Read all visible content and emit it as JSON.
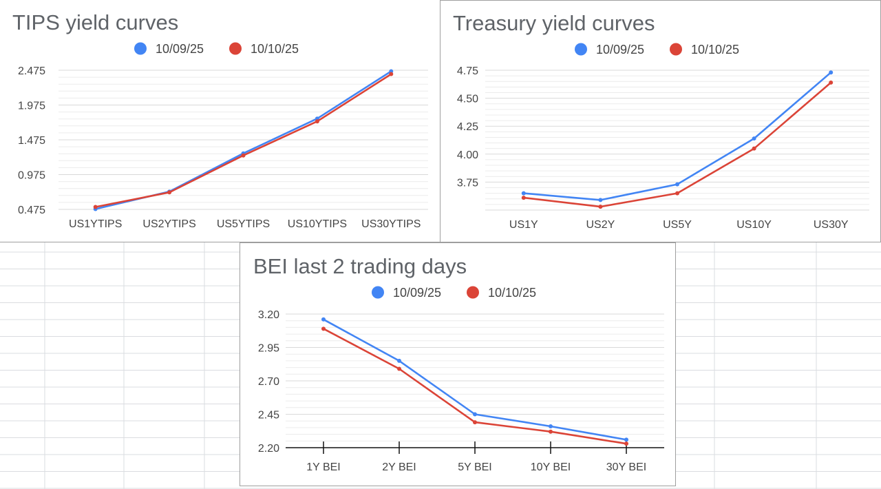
{
  "colors": {
    "series1": "#4285f4",
    "series2": "#db4437",
    "gridline": "#d9d9d9",
    "minor_gridline": "#ececec",
    "axis": "#333333",
    "sheet_line": "#dadce0"
  },
  "chart_data": [
    {
      "type": "line",
      "title": "TIPS yield curves",
      "categories": [
        "US1YTIPS",
        "US2YTIPS",
        "US5YTIPS",
        "US10YTIPS",
        "US30YTIPS"
      ],
      "series": [
        {
          "name": "10/09/25",
          "values": [
            0.48,
            0.73,
            1.28,
            1.78,
            2.46
          ]
        },
        {
          "name": "10/10/25",
          "values": [
            0.51,
            0.72,
            1.25,
            1.74,
            2.42
          ]
        }
      ],
      "ylim": [
        0.475,
        2.475
      ],
      "y_ticks": [
        "0.475",
        "0.975",
        "1.475",
        "1.975",
        "2.475"
      ],
      "grid": true,
      "legend": "top"
    },
    {
      "type": "line",
      "title": "Treasury yield curves",
      "categories": [
        "US1Y",
        "US2Y",
        "US5Y",
        "US10Y",
        "US30Y"
      ],
      "series": [
        {
          "name": "10/09/25",
          "values": [
            3.65,
            3.59,
            3.73,
            4.14,
            4.73
          ]
        },
        {
          "name": "10/10/25",
          "values": [
            3.61,
            3.53,
            3.65,
            4.05,
            4.64
          ]
        }
      ],
      "ylim": [
        3.5,
        4.75
      ],
      "y_ticks": [
        "3.75",
        "4.00",
        "4.25",
        "4.50",
        "4.75"
      ],
      "grid": true,
      "legend": "top"
    },
    {
      "type": "line",
      "title": "BEI last 2 trading days",
      "categories": [
        "1Y BEI",
        "2Y BEI",
        "5Y BEI",
        "10Y BEI",
        "30Y BEI"
      ],
      "series": [
        {
          "name": "10/09/25",
          "values": [
            3.16,
            2.85,
            2.45,
            2.36,
            2.26
          ]
        },
        {
          "name": "10/10/25",
          "values": [
            3.09,
            2.79,
            2.39,
            2.32,
            2.23
          ]
        }
      ],
      "ylim": [
        2.2,
        3.2
      ],
      "y_ticks": [
        "2.20",
        "2.45",
        "2.70",
        "2.95",
        "3.20"
      ],
      "grid": true,
      "legend": "top"
    }
  ]
}
